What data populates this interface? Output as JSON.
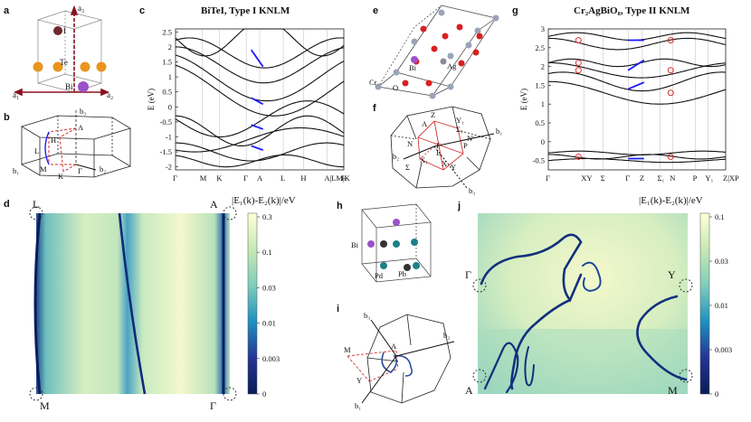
{
  "panels": {
    "a": {
      "letter": "a",
      "atoms": [
        "I",
        "Te",
        "Bi"
      ],
      "vectors": [
        "a₁",
        "a₂",
        "a₃"
      ]
    },
    "b": {
      "letter": "b",
      "points": [
        "A",
        "H",
        "L",
        "M",
        "K",
        "Γ"
      ],
      "vectors": [
        "b₁",
        "b₂",
        "b₃"
      ]
    },
    "c": {
      "letter": "c",
      "title": "BiTeI, Type I KNLM",
      "ylabel": "E (eV)",
      "yticks": [
        "2.5",
        "2",
        "1.5",
        "1",
        "0.5",
        "0",
        "-0.5",
        "-1",
        "-1.5",
        "-2"
      ],
      "xticks": [
        "Γ",
        "M",
        "K",
        "Γ",
        "A",
        "L",
        "H",
        "A|LM|K",
        "H"
      ]
    },
    "e": {
      "letter": "e",
      "atoms": [
        "Cr",
        "Bi",
        "Ag",
        "O"
      ]
    },
    "f": {
      "letter": "f",
      "points": [
        "Z",
        "A",
        "L",
        "Γ",
        "N",
        "N'",
        "P",
        "X",
        "Y",
        "Σ",
        "Σ₁",
        "Y₁",
        "X₁"
      ],
      "vectors": [
        "b₁",
        "b₂",
        "b₃"
      ]
    },
    "g": {
      "letter": "g",
      "title": "Cr₂AgBiO₈, Type II KNLM",
      "ylabel": "E (eV)",
      "yticks": [
        "3",
        "2.5",
        "2",
        "1.5",
        "1",
        "0.5",
        "0",
        "-0.5"
      ],
      "xticks": [
        "Γ",
        "XY",
        "Σ",
        "Γ",
        "Z",
        "Σ₁",
        "N",
        "P",
        "Y₁",
        "Z|XP"
      ]
    },
    "d": {
      "letter": "d",
      "corners": {
        "tl": "L",
        "tr": "A",
        "bl": "M",
        "br": "Γ"
      },
      "cbar_title": "|E₁(k)-E₂(k)|/eV",
      "cbar_ticks": [
        "0.3",
        "0.1",
        "0.03",
        "0.01",
        "0.003",
        "0"
      ]
    },
    "h": {
      "letter": "h",
      "atoms": [
        "Bi",
        "Pd",
        "Pb"
      ]
    },
    "i": {
      "letter": "i",
      "points": [
        "M",
        "Y",
        "A"
      ],
      "vectors": [
        "b₁",
        "b₂",
        "b₃"
      ]
    },
    "j": {
      "letter": "j",
      "corners": {
        "tl": "Γ",
        "tr": "Y",
        "bl": "A",
        "br": "M"
      },
      "cbar_title": "|E₁(k)-E₂(k)|/eV",
      "cbar_ticks": [
        "0.1",
        "0.03",
        "0.01",
        "0.003",
        "0"
      ]
    }
  },
  "colors": {
    "node_blue": "#1a1aff",
    "marker_red": "#e03030",
    "map_dark": "#0b1c60",
    "map_light": "#f4f8cc",
    "atom_orange": "#e8951e",
    "atom_purple": "#9a52c8",
    "atom_red": "#d82020",
    "atom_teal": "#1c7f8a",
    "atom_grey": "#9aa3b8"
  }
}
